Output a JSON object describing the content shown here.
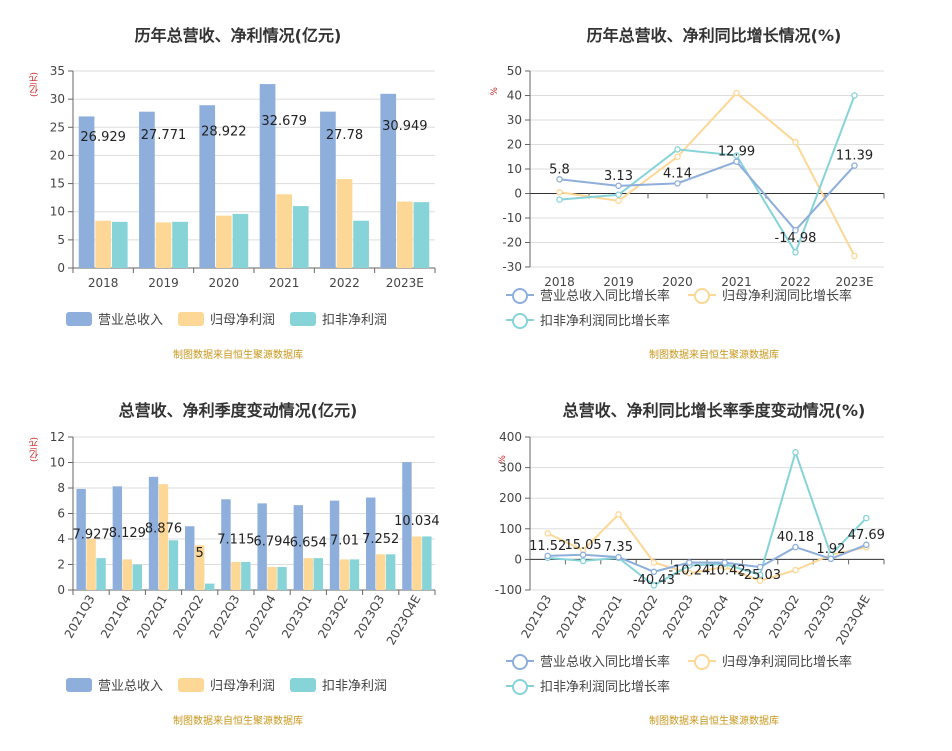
{
  "source_text": "制图数据来自恒生聚源数据库",
  "legend_bars": [
    "营业总收入",
    "归母净利润",
    "扣非净利润"
  ],
  "legend_lines": [
    "营业总收入同比增长率",
    "归母净利润同比增长率",
    "扣非净利润同比增长率"
  ],
  "colors": {
    "revenue": "#8eaedc",
    "net_profit": "#fdd796",
    "deducted_profit": "#86d3d8",
    "axis": "#666666",
    "grid": "#dddddd",
    "title": "#333333"
  },
  "panels": [
    {
      "title": "历年总营收、净利情况(亿元)",
      "unit": "(亿元)"
    },
    {
      "title": "历年总营收、净利同比增长情况(%)",
      "unit": "%"
    },
    {
      "title": "总营收、净利季度变动情况(亿元)",
      "unit": "(亿元)"
    },
    {
      "title": "总营收、净利同比增长率季度变动情况(%)",
      "unit": "%"
    }
  ],
  "chart_data": [
    {
      "type": "bar",
      "title": "历年总营收、净利情况(亿元)",
      "ylabel": "(亿元)",
      "categories": [
        "2018",
        "2019",
        "2020",
        "2021",
        "2022",
        "2023E"
      ],
      "ylim": [
        0,
        35
      ],
      "yticks": [
        0,
        5,
        10,
        15,
        20,
        25,
        30,
        35
      ],
      "series": [
        {
          "name": "营业总收入",
          "values": [
            26.929,
            27.771,
            28.922,
            32.679,
            27.78,
            30.949
          ]
        },
        {
          "name": "归母净利润",
          "values": [
            8.4,
            8.1,
            9.3,
            13.1,
            15.8,
            11.8
          ]
        },
        {
          "name": "扣非净利润",
          "values": [
            8.2,
            8.2,
            9.6,
            11.0,
            8.4,
            11.7
          ]
        }
      ],
      "data_labels": [
        "26.929",
        "27.771",
        "28.922",
        "32.679",
        "27.78",
        "30.949"
      ],
      "grid": true,
      "legend": "bottom"
    },
    {
      "type": "line",
      "title": "历年总营收、净利同比增长情况(%)",
      "ylabel": "%",
      "categories": [
        "2018",
        "2019",
        "2020",
        "2021",
        "2022",
        "2023E"
      ],
      "ylim": [
        -30,
        50
      ],
      "yticks": [
        -30,
        -20,
        -10,
        0,
        10,
        20,
        30,
        40,
        50
      ],
      "series": [
        {
          "name": "营业总收入同比增长率",
          "values": [
            5.8,
            3.13,
            4.14,
            12.99,
            -14.98,
            11.39
          ]
        },
        {
          "name": "归母净利润同比增长率",
          "values": [
            0.5,
            -3.0,
            15.0,
            41.0,
            21.0,
            -25.5
          ]
        },
        {
          "name": "扣非净利润同比增长率",
          "values": [
            -2.5,
            -0.5,
            18.0,
            15.5,
            -24.0,
            40.0
          ]
        }
      ],
      "data_labels": [
        "5.8",
        "3.13",
        "4.14",
        "12.99",
        "-14.98",
        "11.39"
      ],
      "grid": true,
      "legend": "bottom"
    },
    {
      "type": "bar",
      "title": "总营收、净利季度变动情况(亿元)",
      "ylabel": "(亿元)",
      "categories": [
        "2021Q3",
        "2021Q4",
        "2022Q1",
        "2022Q2",
        "2022Q3",
        "2022Q4",
        "2023Q1",
        "2023Q2",
        "2023Q3",
        "2023Q4E"
      ],
      "ylim": [
        0,
        12
      ],
      "yticks": [
        0,
        2,
        4,
        6,
        8,
        10,
        12
      ],
      "series": [
        {
          "name": "营业总收入",
          "values": [
            7.927,
            8.129,
            8.876,
            5.0,
            7.115,
            6.794,
            6.654,
            7.01,
            7.252,
            10.034
          ]
        },
        {
          "name": "归母净利润",
          "values": [
            4.0,
            2.4,
            8.3,
            3.5,
            2.2,
            1.8,
            2.5,
            2.4,
            2.8,
            4.2
          ]
        },
        {
          "name": "扣非净利润",
          "values": [
            2.5,
            2.0,
            3.9,
            0.5,
            2.2,
            1.8,
            2.5,
            2.4,
            2.8,
            4.2
          ]
        }
      ],
      "data_labels": [
        "7.927",
        "8.129",
        "8.876",
        "5",
        "7.115",
        "6.794",
        "6.654",
        "7.01",
        "7.252",
        "10.034"
      ],
      "grid": true,
      "legend": "bottom"
    },
    {
      "type": "line",
      "title": "总营收、净利同比增长率季度变动情况(%)",
      "ylabel": "%",
      "categories": [
        "2021Q3",
        "2021Q4",
        "2022Q1",
        "2022Q2",
        "2022Q3",
        "2022Q4",
        "2023Q1",
        "2023Q2",
        "2023Q3",
        "2023Q4E"
      ],
      "ylim": [
        -100,
        400
      ],
      "yticks": [
        -100,
        0,
        100,
        200,
        300,
        400
      ],
      "series": [
        {
          "name": "营业总收入同比增长率",
          "values": [
            11.52,
            15.05,
            7.35,
            -40.43,
            -10.24,
            -10.42,
            -25.03,
            40.18,
            1.92,
            47.69
          ]
        },
        {
          "name": "归母净利润同比增长率",
          "values": [
            85,
            30,
            147,
            -10,
            -45,
            -25,
            -70,
            -35,
            15,
            40
          ]
        },
        {
          "name": "扣非净利润同比增长率",
          "values": [
            5,
            -5,
            5,
            -85,
            -20,
            -15,
            -50,
            350,
            15,
            135
          ]
        }
      ],
      "data_labels": [
        "11.52",
        "15.05",
        "7.35",
        "-40.43",
        "-10.24",
        "-10.42",
        "-25.03",
        "40.18",
        "1.92",
        "47.69"
      ],
      "grid": true,
      "legend": "bottom"
    }
  ]
}
